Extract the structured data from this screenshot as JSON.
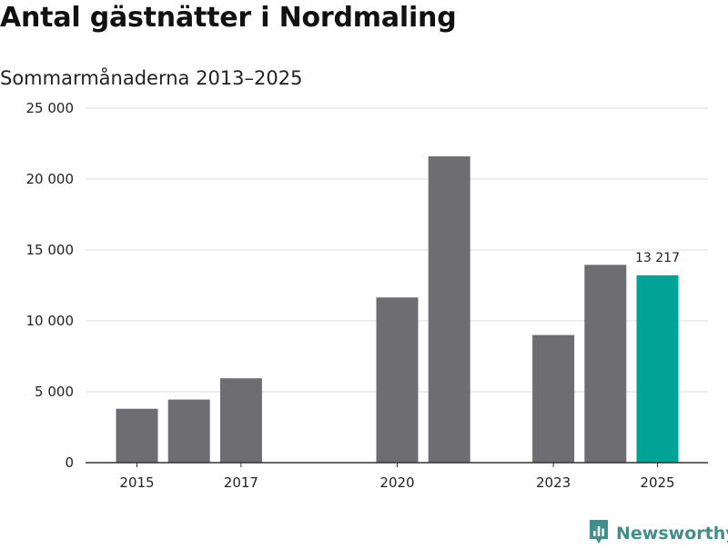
{
  "title": "Antal gästnätter i Nordmaling",
  "subtitle": "Sommarmånaderna 2013–2025",
  "brand": {
    "name": "Newsworthy",
    "icon": "newsworthy-logo-icon"
  },
  "colors": {
    "bar": "#6e6d72",
    "highlight": "#00a396",
    "grid": "#dddddd",
    "axis": "#333333",
    "brand": "#3f8f8b"
  },
  "chart_data": {
    "type": "bar",
    "title": "Antal gästnätter i Nordmaling",
    "subtitle": "Sommarmånaderna 2013–2025",
    "x": [
      2015,
      2016,
      2017,
      2018,
      2019,
      2020,
      2021,
      2022,
      2023,
      2024,
      2025
    ],
    "values": [
      3800,
      4450,
      5950,
      null,
      null,
      11650,
      21600,
      null,
      9000,
      13950,
      13217
    ],
    "highlight_x": 2025,
    "data_labels": [
      {
        "x": 2025,
        "text": "13 217"
      }
    ],
    "xticks": [
      {
        "value": 2015,
        "label": "2015"
      },
      {
        "value": 2017,
        "label": "2017"
      },
      {
        "value": 2020,
        "label": "2020"
      },
      {
        "value": 2023,
        "label": "2023"
      },
      {
        "value": 2025,
        "label": "2025"
      }
    ],
    "yticks": [
      {
        "value": 0,
        "label": "0"
      },
      {
        "value": 5000,
        "label": "5 000"
      },
      {
        "value": 10000,
        "label": "10 000"
      },
      {
        "value": 15000,
        "label": "15 000"
      },
      {
        "value": 20000,
        "label": "20 000"
      },
      {
        "value": 25000,
        "label": "25 000"
      }
    ],
    "ylim": [
      0,
      25000
    ],
    "xlim": [
      2014.5,
      2025.5
    ],
    "grid": true
  }
}
